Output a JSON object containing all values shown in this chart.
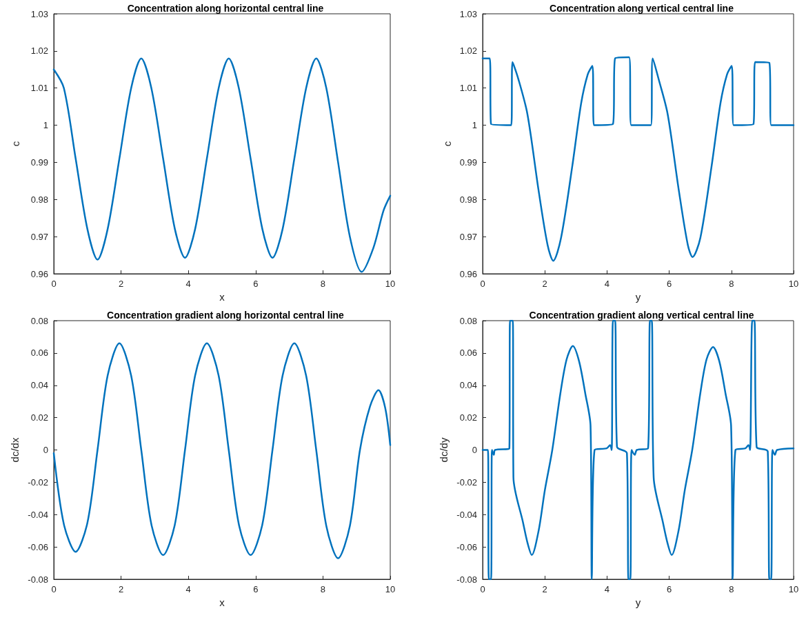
{
  "chart_data": [
    {
      "type": "line",
      "title": "Concentration along horizontal central line",
      "xlabel": "x",
      "ylabel": "c",
      "color": "#0072bd",
      "marker": "none",
      "line_style": "solid",
      "xlim": [
        0,
        10
      ],
      "ylim": [
        0.96,
        1.03
      ],
      "xticks": [
        0,
        2,
        4,
        6,
        8,
        10
      ],
      "yticks": [
        0.96,
        0.97,
        0.98,
        0.99,
        1,
        1.01,
        1.02,
        1.03
      ],
      "x": [
        0,
        0.3,
        0.65,
        1.0,
        1.3,
        1.6,
        1.95,
        2.3,
        2.6,
        2.9,
        3.25,
        3.6,
        3.9,
        4.2,
        4.55,
        4.9,
        5.2,
        5.5,
        5.85,
        6.2,
        6.5,
        6.8,
        7.15,
        7.5,
        7.8,
        8.1,
        8.45,
        8.8,
        9.15,
        9.5,
        9.8,
        10
      ],
      "values": [
        1.015,
        1.01,
        0.991,
        0.972,
        0.9638,
        0.972,
        0.991,
        1.01,
        1.018,
        1.01,
        0.991,
        0.972,
        0.9643,
        0.972,
        0.991,
        1.01,
        1.018,
        1.01,
        0.991,
        0.972,
        0.9643,
        0.972,
        0.991,
        1.01,
        1.018,
        1.01,
        0.99,
        0.97,
        0.9605,
        0.967,
        0.977,
        0.981
      ]
    },
    {
      "type": "line",
      "title": "Concentration along vertical central line",
      "xlabel": "y",
      "ylabel": "c",
      "color": "#0072bd",
      "marker": "none",
      "line_style": "solid",
      "xlim": [
        0,
        10
      ],
      "ylim": [
        0.96,
        1.03
      ],
      "xticks": [
        0,
        2,
        4,
        6,
        8,
        10
      ],
      "yticks": [
        0.96,
        0.97,
        0.98,
        0.99,
        1,
        1.01,
        1.02,
        1.03
      ],
      "x": [
        0,
        0.23,
        0.27,
        0.92,
        0.96,
        1.15,
        1.44,
        1.8,
        2.09,
        2.27,
        2.52,
        2.88,
        3.17,
        3.38,
        3.53,
        3.58,
        4.19,
        4.26,
        4.71,
        4.78,
        5.41,
        5.47,
        5.66,
        5.95,
        6.31,
        6.6,
        6.75,
        7.0,
        7.36,
        7.65,
        7.86,
        8.01,
        8.07,
        8.71,
        8.76,
        9.22,
        9.28,
        10
      ],
      "values": [
        1.018,
        1.018,
        1.0003,
        1.0,
        1.017,
        1.0124,
        1.003,
        0.9824,
        0.9677,
        0.9635,
        0.9696,
        0.9888,
        1.006,
        1.0137,
        1.016,
        1.0,
        1.0003,
        1.018,
        1.0183,
        1.0,
        1.0,
        1.018,
        1.0124,
        1.003,
        0.9824,
        0.9677,
        0.9645,
        0.9696,
        0.9888,
        1.006,
        1.0137,
        1.016,
        1.0,
        1.0003,
        1.017,
        1.0168,
        1.0,
        1.0
      ]
    },
    {
      "type": "line",
      "title": "Concentration gradient along horizontal central line",
      "xlabel": "x",
      "ylabel": "dc/dx",
      "color": "#0072bd",
      "marker": "none",
      "line_style": "solid",
      "xlim": [
        0,
        10
      ],
      "ylim": [
        -0.08,
        0.08
      ],
      "xticks": [
        0,
        2,
        4,
        6,
        8,
        10
      ],
      "yticks": [
        -0.08,
        -0.06,
        -0.04,
        -0.02,
        0,
        0.02,
        0.04,
        0.06,
        0.08
      ],
      "x": [
        0,
        0.3,
        0.65,
        1.0,
        1.3,
        1.6,
        1.95,
        2.3,
        2.6,
        2.9,
        3.25,
        3.6,
        3.9,
        4.2,
        4.55,
        4.9,
        5.2,
        5.5,
        5.85,
        6.2,
        6.5,
        6.8,
        7.15,
        7.5,
        7.8,
        8.1,
        8.45,
        8.8,
        9.1,
        9.4,
        9.65,
        9.85,
        10
      ],
      "values": [
        -0.002,
        -0.046,
        -0.063,
        -0.045,
        0,
        0.046,
        0.066,
        0.046,
        0,
        -0.046,
        -0.065,
        -0.046,
        0,
        0.046,
        0.066,
        0.046,
        0,
        -0.046,
        -0.065,
        -0.046,
        0,
        0.046,
        0.066,
        0.046,
        0,
        -0.047,
        -0.067,
        -0.047,
        0,
        0.027,
        0.037,
        0.026,
        0.003
      ]
    },
    {
      "type": "line",
      "title": "Concentration gradient along vertical central line",
      "xlabel": "y",
      "ylabel": "dc/dy",
      "color": "#0072bd",
      "marker": "none",
      "line_style": "solid",
      "xlim": [
        0,
        10
      ],
      "ylim": [
        -0.08,
        0.08
      ],
      "xticks": [
        0,
        2,
        4,
        6,
        8,
        10
      ],
      "yticks": [
        -0.08,
        -0.06,
        -0.04,
        -0.02,
        0,
        0.02,
        0.04,
        0.06,
        0.08
      ],
      "x": [
        0,
        0.17,
        0.2,
        0.27,
        0.3,
        0.36,
        0.4,
        0.86,
        0.88,
        0.97,
        0.99,
        1.3,
        1.45,
        1.58,
        1.8,
        2.0,
        2.24,
        2.5,
        2.7,
        2.9,
        3.1,
        3.3,
        3.47,
        3.51,
        3.6,
        3.99,
        4.1,
        4.15,
        4.19,
        4.26,
        4.32,
        4.64,
        4.69,
        4.75,
        4.79,
        4.89,
        4.96,
        5.32,
        5.38,
        5.44,
        5.5,
        5.8,
        5.95,
        6.08,
        6.3,
        6.5,
        6.74,
        7.0,
        7.2,
        7.41,
        7.61,
        7.81,
        7.99,
        8.04,
        8.13,
        8.45,
        8.55,
        8.6,
        8.67,
        8.74,
        8.81,
        9.17,
        9.22,
        9.28,
        9.32,
        9.4,
        9.47,
        10
      ],
      "values": [
        0,
        0,
        -0.08,
        -0.08,
        0,
        -0.003,
        0,
        0.001,
        0.08,
        0.08,
        -0.017,
        -0.045,
        -0.058,
        -0.065,
        -0.05,
        -0.025,
        0,
        0.035,
        0.056,
        0.0643,
        0.055,
        0.035,
        0.015,
        -0.08,
        0,
        0.001,
        0.003,
        0,
        0.08,
        0.08,
        0.002,
        -0.002,
        -0.08,
        -0.08,
        0,
        -0.003,
        0,
        0.001,
        0.08,
        0.08,
        -0.017,
        -0.045,
        -0.058,
        -0.065,
        -0.05,
        -0.025,
        0,
        0.035,
        0.056,
        0.0637,
        0.055,
        0.035,
        0.015,
        -0.08,
        0,
        0.001,
        0.003,
        0,
        0.08,
        0.08,
        0.002,
        -0.001,
        -0.08,
        -0.08,
        0,
        -0.003,
        0,
        0.001
      ]
    }
  ]
}
